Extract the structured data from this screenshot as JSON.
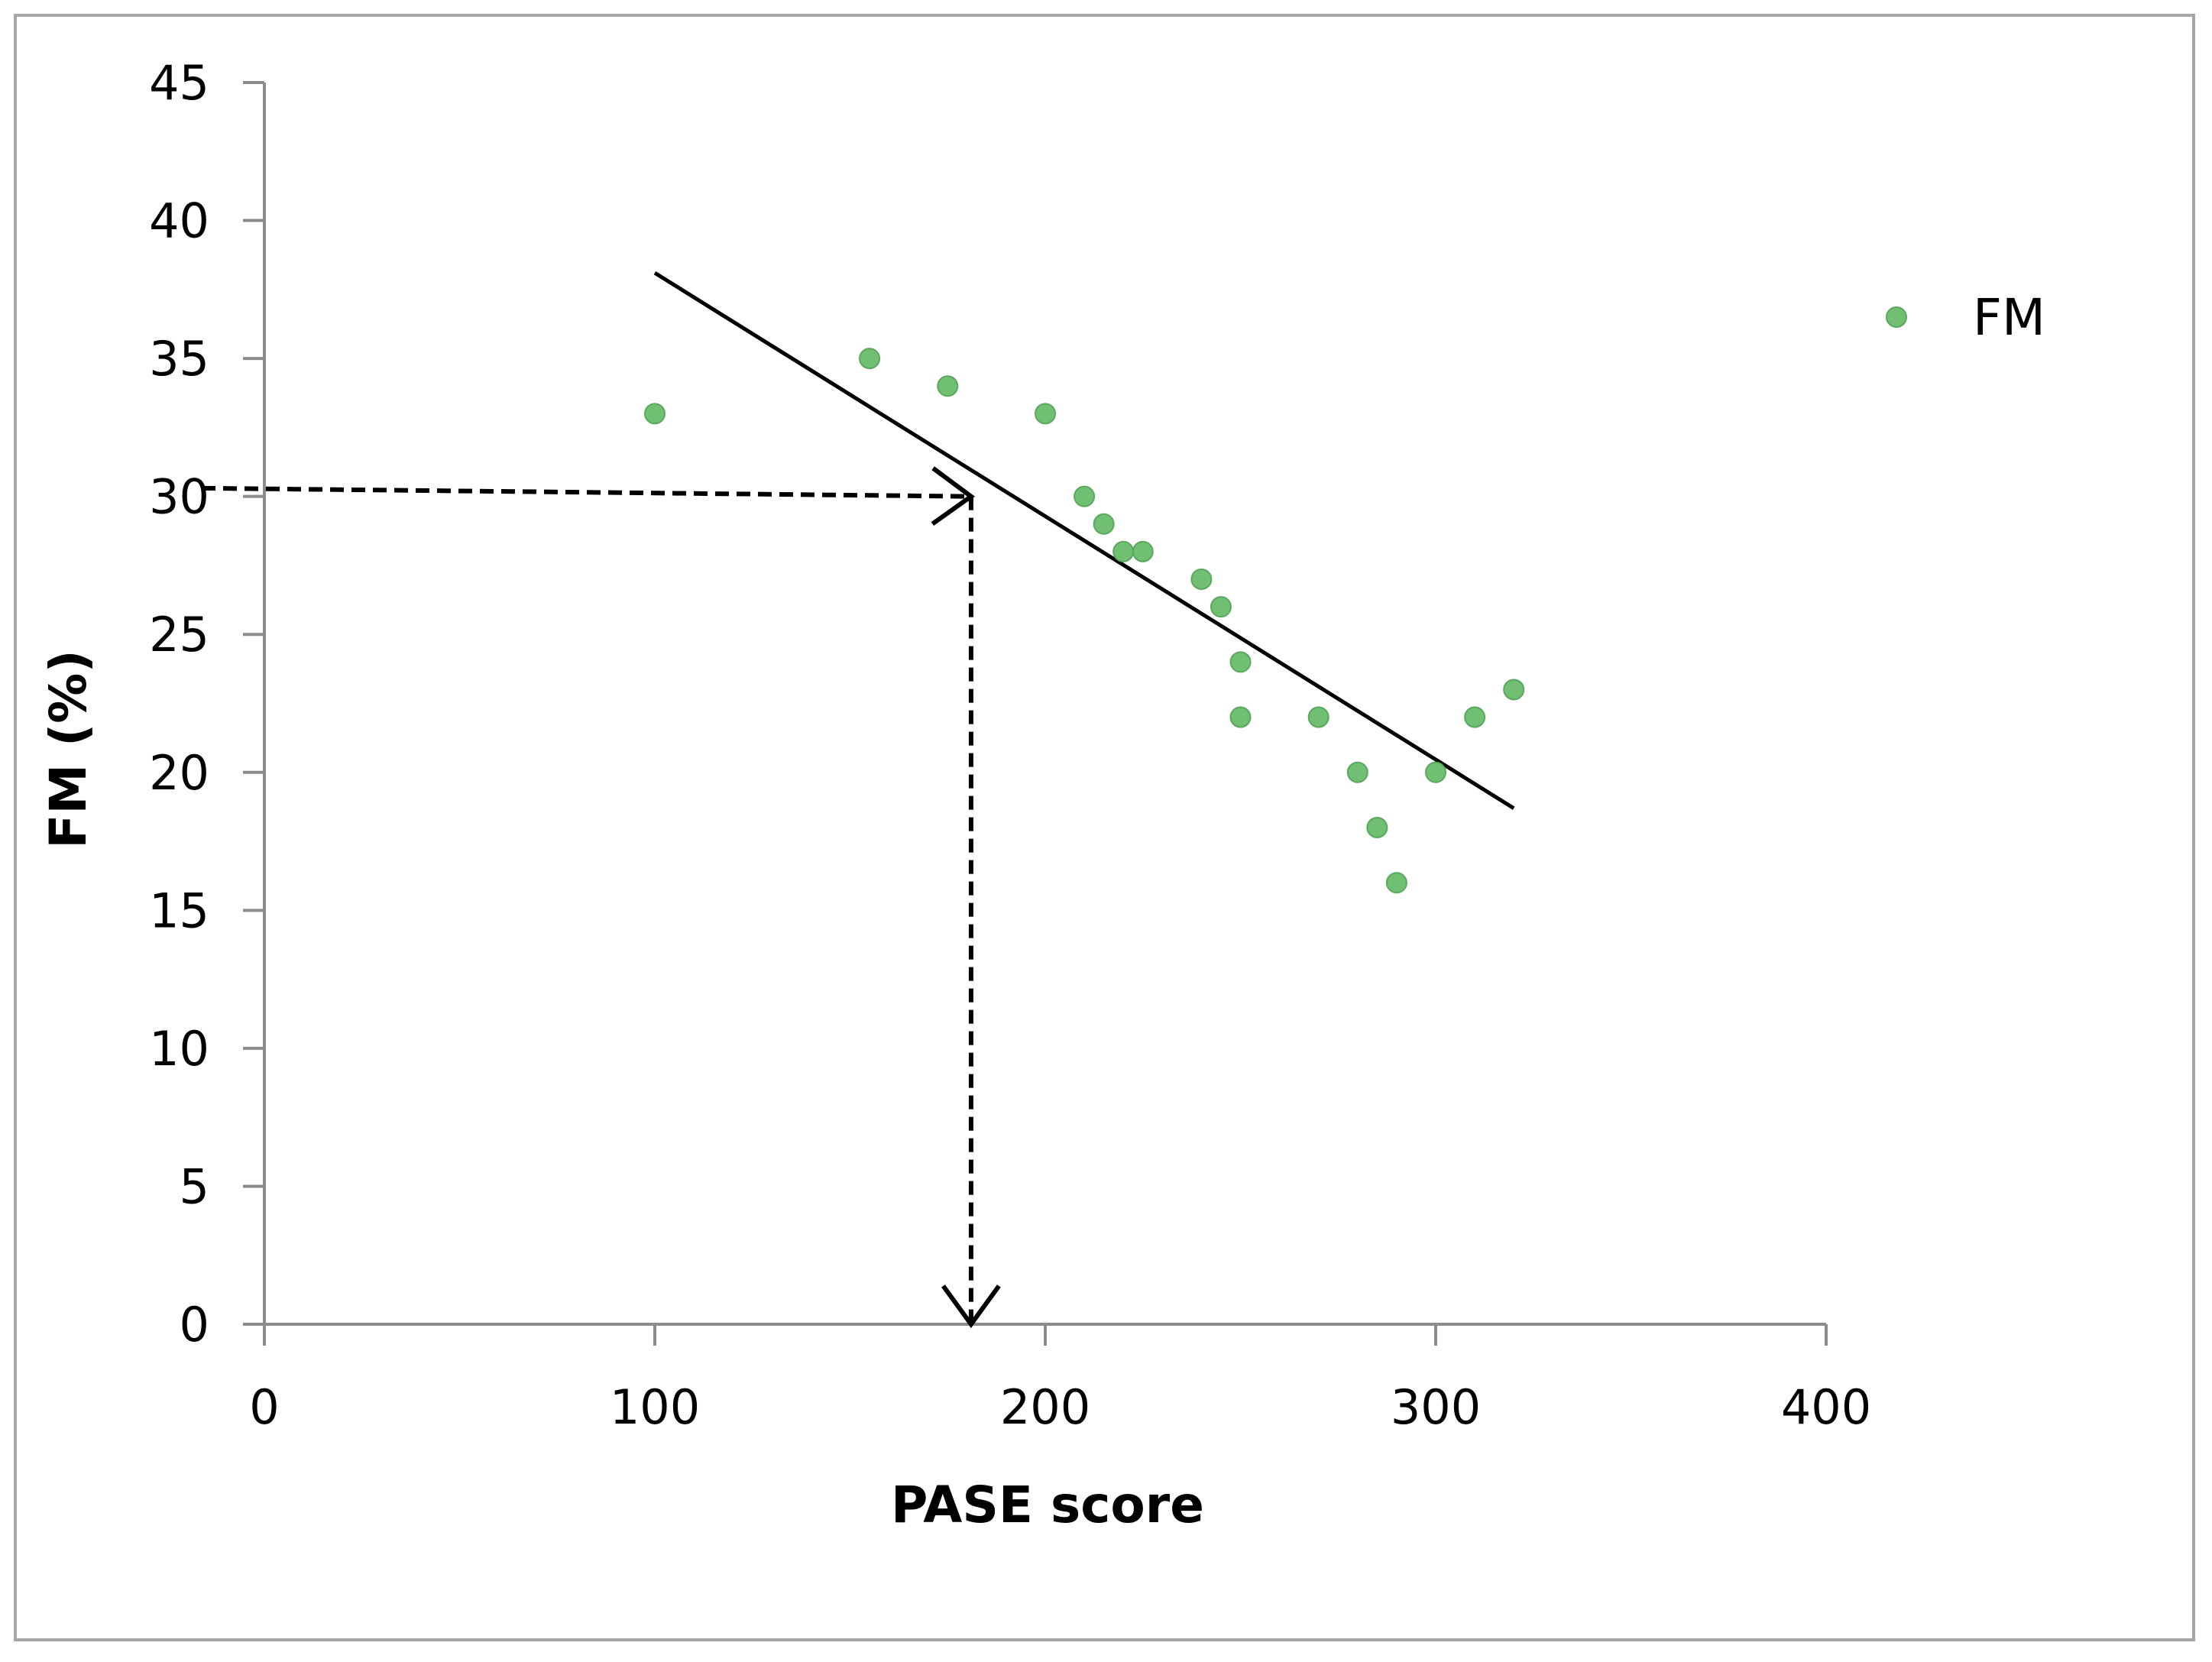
{
  "chart_data": {
    "type": "scatter",
    "title": "",
    "xlabel": "PASE score",
    "ylabel": "FM (%)",
    "xlim": [
      0,
      400
    ],
    "ylim": [
      0,
      45
    ],
    "x_ticks": [
      0,
      100,
      200,
      300,
      400
    ],
    "y_ticks": [
      0,
      5,
      10,
      15,
      20,
      25,
      30,
      35,
      40,
      45
    ],
    "grid": false,
    "legend": {
      "position": "right",
      "entries": [
        "FM"
      ]
    },
    "series": [
      {
        "name": "FM",
        "color": "#70bf73",
        "points": [
          {
            "x": 100,
            "y": 33
          },
          {
            "x": 155,
            "y": 35
          },
          {
            "x": 175,
            "y": 34
          },
          {
            "x": 200,
            "y": 33
          },
          {
            "x": 210,
            "y": 30
          },
          {
            "x": 215,
            "y": 29
          },
          {
            "x": 220,
            "y": 28
          },
          {
            "x": 225,
            "y": 28
          },
          {
            "x": 240,
            "y": 27
          },
          {
            "x": 245,
            "y": 26
          },
          {
            "x": 250,
            "y": 24
          },
          {
            "x": 250,
            "y": 22
          },
          {
            "x": 270,
            "y": 22
          },
          {
            "x": 280,
            "y": 20
          },
          {
            "x": 285,
            "y": 18
          },
          {
            "x": 290,
            "y": 16
          },
          {
            "x": 300,
            "y": 20
          },
          {
            "x": 310,
            "y": 22
          },
          {
            "x": 320,
            "y": 23
          }
        ]
      }
    ],
    "trendline": {
      "color": "#000000",
      "start": {
        "x": 100,
        "y": 38.1
      },
      "end": {
        "x": 320,
        "y": 18.7
      }
    },
    "annotations": [
      {
        "type": "dashed-arrow",
        "from": {
          "x": 0,
          "y": 30.3
        },
        "to": {
          "x": 181,
          "y": 30
        }
      },
      {
        "type": "dashed-arrow",
        "from": {
          "x": 181,
          "y": 30
        },
        "to": {
          "x": 181,
          "y": 0
        }
      }
    ]
  }
}
